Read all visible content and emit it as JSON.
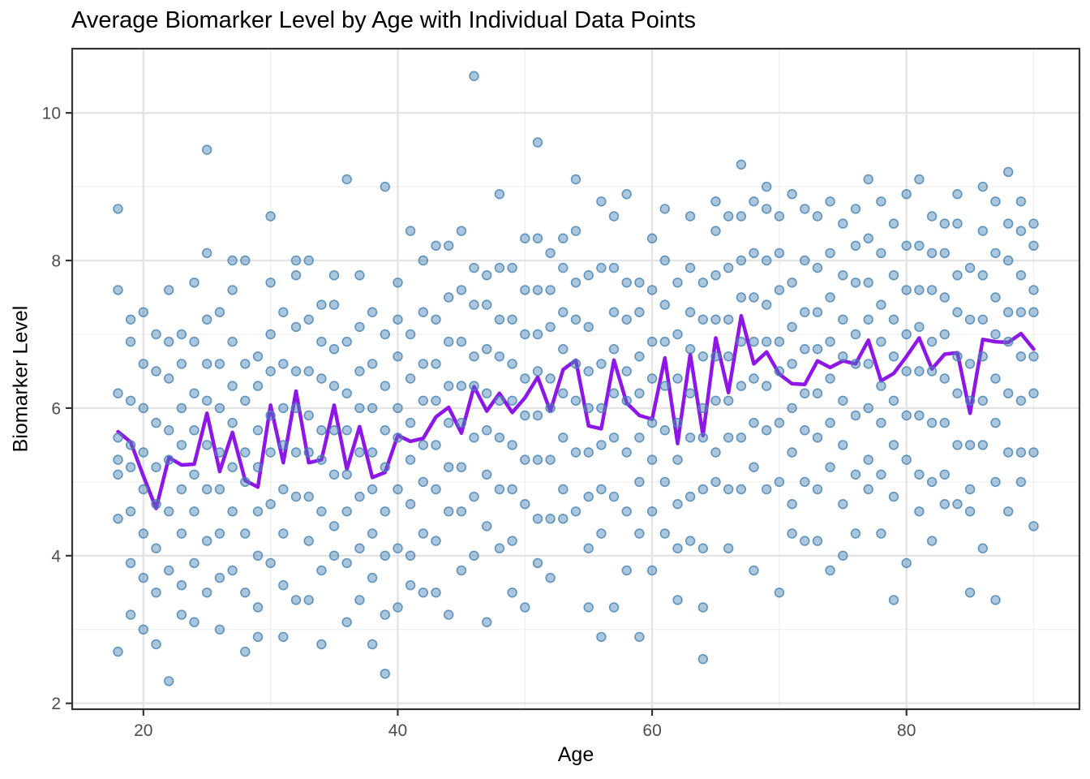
{
  "title": "Average Biomarker Level by Age with Individual Data Points",
  "chart_data": {
    "type": "scatter",
    "title": "Average Biomarker Level by Age with Individual Data Points",
    "xlabel": "Age",
    "ylabel": "Biomarker Level",
    "x_major_ticks": [
      20,
      40,
      60,
      80
    ],
    "x_minor_gridlines": [
      30,
      50,
      70,
      90
    ],
    "y_major_ticks": [
      2,
      4,
      6,
      8,
      10
    ],
    "y_minor_gridlines": [
      3,
      5,
      7,
      9
    ],
    "xlim": [
      14.4,
      93.6
    ],
    "ylim": [
      1.92,
      10.87
    ],
    "grid": "major and minor, light gray on white",
    "legend_position": "none",
    "styles": {
      "point_color": "#4682B4",
      "point_alpha": 0.5,
      "point_radius": 5.4,
      "line_color": "#8F16E9",
      "line_width": 4.5,
      "grid_major_color": "#E4E4E4",
      "grid_minor_color": "#F0F0F0",
      "panel_border_color": "#333333",
      "tick_color": "#333333",
      "tick_label_color": "#4D4D4D",
      "title_color": "#000000",
      "background": "#FFFFFF"
    },
    "mean_line": {
      "label": "Average biomarker level by age",
      "ages": [
        18,
        19,
        20,
        21,
        22,
        23,
        24,
        25,
        26,
        27,
        28,
        29,
        30,
        31,
        32,
        33,
        34,
        35,
        36,
        37,
        38,
        39,
        40,
        41,
        42,
        43,
        44,
        45,
        46,
        47,
        48,
        49,
        50,
        51,
        52,
        53,
        54,
        55,
        56,
        57,
        58,
        59,
        60,
        61,
        62,
        63,
        64,
        65,
        66,
        67,
        68,
        69,
        70,
        71,
        72,
        73,
        74,
        75,
        76,
        77,
        78,
        79,
        80,
        81,
        82,
        83,
        84,
        85,
        86,
        87,
        88,
        89,
        90
      ],
      "values": [
        5.68,
        5.54,
        5.08,
        4.64,
        5.33,
        5.23,
        5.24,
        5.93,
        5.14,
        5.67,
        5.02,
        4.93,
        6.04,
        5.26,
        6.23,
        5.26,
        5.3,
        6.04,
        5.17,
        5.75,
        5.06,
        5.13,
        5.63,
        5.55,
        5.59,
        5.88,
        6.01,
        5.66,
        6.29,
        5.96,
        6.2,
        5.94,
        6.14,
        6.42,
        5.96,
        6.52,
        6.65,
        5.76,
        5.72,
        6.65,
        6.07,
        5.9,
        5.85,
        6.68,
        5.52,
        6.73,
        5.63,
        6.95,
        6.21,
        7.25,
        6.6,
        6.76,
        6.46,
        6.33,
        6.32,
        6.64,
        6.55,
        6.64,
        6.6,
        6.92,
        6.37,
        6.47,
        6.7,
        6.95,
        6.53,
        6.73,
        6.75,
        5.93,
        6.93,
        6.9,
        6.89,
        7.01,
        6.8
      ]
    },
    "points_by_age": {
      "18": [
        2.7,
        4.5,
        5.1,
        5.3,
        5.6,
        6.2,
        7.6,
        8.7
      ],
      "19": [
        3.2,
        3.9,
        4.6,
        5.2,
        5.5,
        6.1,
        6.9,
        7.2
      ],
      "20": [
        3.0,
        3.7,
        4.3,
        4.9,
        5.4,
        6.0,
        6.6,
        7.3
      ],
      "21": [
        2.8,
        3.5,
        4.1,
        4.7,
        5.2,
        5.8,
        6.5,
        7.0
      ],
      "22": [
        2.3,
        3.8,
        4.6,
        5.3,
        5.7,
        6.4,
        6.9,
        7.6
      ],
      "23": [
        3.2,
        3.6,
        4.3,
        4.9,
        5.5,
        6.0,
        6.6,
        7.0
      ],
      "24": [
        3.1,
        3.9,
        4.6,
        5.1,
        5.7,
        6.2,
        6.9,
        7.7
      ],
      "25": [
        3.5,
        4.2,
        4.9,
        5.5,
        6.1,
        6.6,
        7.2,
        8.1,
        9.5
      ],
      "26": [
        3.0,
        3.7,
        4.3,
        4.9,
        5.4,
        6.0,
        6.6,
        7.3
      ],
      "27": [
        3.8,
        4.6,
        5.2,
        5.8,
        6.3,
        6.9,
        7.6,
        8.0
      ],
      "28": [
        2.7,
        3.5,
        4.3,
        5.0,
        5.4,
        6.1,
        6.6,
        8.0
      ],
      "29": [
        2.9,
        3.3,
        4.0,
        4.6,
        5.2,
        5.7,
        6.3,
        6.7
      ],
      "30": [
        3.9,
        4.7,
        5.4,
        5.9,
        6.5,
        7.0,
        7.7,
        8.6
      ],
      "31": [
        2.9,
        3.6,
        4.3,
        4.9,
        5.5,
        6.0,
        6.6,
        7.3
      ],
      "32": [
        3.4,
        4.8,
        5.4,
        6.0,
        6.5,
        7.1,
        7.8,
        8.0
      ],
      "33": [
        3.4,
        4.2,
        4.8,
        5.4,
        5.9,
        6.5,
        7.2,
        8.0
      ],
      "34": [
        2.8,
        3.8,
        4.6,
        5.3,
        5.7,
        6.4,
        6.9,
        7.4
      ],
      "35": [
        4.0,
        4.4,
        5.1,
        5.7,
        6.3,
        6.8,
        7.4,
        7.8
      ],
      "36": [
        3.1,
        3.9,
        4.6,
        5.1,
        5.7,
        6.2,
        6.9,
        9.1
      ],
      "37": [
        3.4,
        4.1,
        4.8,
        5.4,
        6.0,
        6.5,
        7.1,
        7.8
      ],
      "38": [
        2.8,
        3.7,
        4.3,
        4.9,
        5.4,
        6.0,
        6.6,
        7.3
      ],
      "39": [
        2.4,
        3.2,
        4.0,
        4.6,
        5.2,
        5.7,
        6.3,
        7.0,
        9.0
      ],
      "40": [
        3.3,
        4.1,
        4.9,
        5.6,
        6.0,
        6.7,
        7.2,
        7.7
      ],
      "41": [
        3.6,
        4.0,
        4.7,
        5.3,
        5.8,
        6.4,
        7.0,
        8.4
      ],
      "42": [
        3.5,
        4.3,
        5.0,
        5.5,
        6.1,
        6.6,
        7.3,
        8.0
      ],
      "43": [
        3.5,
        4.2,
        4.9,
        5.5,
        6.1,
        6.6,
        7.2,
        8.2
      ],
      "44": [
        3.2,
        4.6,
        5.2,
        5.8,
        6.3,
        6.9,
        7.5,
        8.2
      ],
      "45": [
        3.8,
        4.6,
        5.2,
        5.8,
        6.3,
        6.9,
        7.6,
        8.4
      ],
      "46": [
        4.0,
        4.8,
        5.6,
        6.3,
        6.7,
        7.4,
        7.9,
        10.5
      ],
      "47": [
        3.1,
        4.4,
        5.1,
        5.7,
        6.2,
        6.8,
        7.4,
        7.8
      ],
      "48": [
        4.1,
        4.9,
        5.6,
        6.1,
        6.7,
        7.2,
        7.9,
        8.9
      ],
      "49": [
        3.5,
        4.2,
        4.9,
        5.5,
        6.1,
        6.6,
        7.2,
        7.9
      ],
      "50": [
        3.3,
        4.7,
        5.3,
        5.9,
        6.4,
        7.0,
        7.6,
        8.3
      ],
      "51": [
        3.9,
        4.5,
        5.3,
        5.9,
        6.5,
        7.0,
        7.6,
        8.3,
        9.6
      ],
      "52": [
        3.7,
        4.5,
        5.3,
        6.0,
        6.4,
        7.1,
        7.6,
        8.1
      ],
      "53": [
        4.5,
        4.9,
        5.6,
        6.2,
        6.8,
        7.3,
        7.9,
        8.3
      ],
      "54": [
        4.6,
        5.4,
        6.1,
        6.6,
        7.2,
        7.7,
        8.4,
        9.1
      ],
      "55": [
        3.3,
        4.1,
        4.8,
        5.4,
        6.0,
        6.5,
        7.1,
        7.8
      ],
      "56": [
        2.9,
        4.3,
        4.9,
        5.5,
        6.0,
        6.6,
        7.9,
        8.8
      ],
      "57": [
        3.3,
        4.8,
        5.6,
        6.2,
        6.8,
        7.3,
        7.9,
        8.6
      ],
      "58": [
        3.8,
        4.6,
        5.4,
        6.1,
        6.5,
        7.2,
        7.7,
        8.9
      ],
      "59": [
        2.9,
        4.3,
        5.0,
        5.6,
        6.2,
        6.7,
        7.3,
        7.7
      ],
      "60": [
        3.8,
        4.6,
        5.3,
        5.8,
        6.4,
        6.9,
        7.6,
        8.3
      ],
      "61": [
        4.3,
        5.0,
        5.7,
        6.3,
        6.9,
        7.4,
        8.0,
        8.7
      ],
      "62": [
        3.4,
        4.1,
        4.7,
        5.3,
        5.8,
        6.4,
        7.0,
        7.7
      ],
      "63": [
        4.2,
        4.8,
        5.6,
        6.2,
        6.8,
        7.3,
        7.9,
        8.6
      ],
      "64": [
        2.6,
        3.3,
        4.1,
        4.9,
        5.6,
        6.0,
        6.7,
        7.2,
        7.7
      ],
      "65": [
        5.0,
        5.4,
        6.1,
        6.7,
        7.2,
        7.8,
        8.4,
        8.8
      ],
      "66": [
        4.1,
        4.9,
        5.6,
        6.1,
        6.7,
        7.2,
        7.9,
        8.6
      ],
      "67": [
        4.9,
        5.6,
        6.3,
        6.9,
        7.5,
        8.0,
        8.6,
        9.3
      ],
      "68": [
        3.8,
        5.2,
        5.8,
        6.4,
        6.9,
        7.5,
        8.1,
        8.8
      ],
      "69": [
        4.9,
        5.7,
        6.3,
        6.9,
        7.4,
        8.0,
        8.7,
        9.0
      ],
      "70": [
        3.5,
        5.0,
        5.8,
        6.5,
        6.9,
        7.6,
        8.1,
        8.6
      ],
      "71": [
        4.3,
        4.7,
        5.4,
        6.0,
        6.6,
        7.1,
        7.7,
        8.9
      ],
      "72": [
        4.2,
        5.0,
        5.7,
        6.2,
        6.8,
        7.3,
        8.0,
        8.7
      ],
      "73": [
        4.2,
        4.9,
        5.6,
        6.2,
        6.8,
        7.3,
        7.9,
        8.6
      ],
      "74": [
        3.8,
        5.2,
        5.8,
        6.4,
        6.9,
        7.5,
        8.1,
        8.8
      ],
      "75": [
        4.0,
        4.7,
        5.5,
        6.1,
        6.7,
        7.2,
        7.8,
        8.5
      ],
      "76": [
        4.3,
        5.1,
        5.9,
        6.6,
        7.0,
        7.7,
        8.2,
        8.7
      ],
      "77": [
        4.9,
        5.3,
        6.0,
        6.6,
        7.2,
        7.7,
        8.3,
        9.1
      ],
      "78": [
        4.3,
        5.1,
        5.8,
        6.3,
        6.9,
        7.4,
        8.1,
        8.8
      ],
      "79": [
        3.4,
        4.8,
        5.5,
        6.1,
        6.7,
        7.2,
        7.8,
        8.5
      ],
      "80": [
        3.9,
        5.3,
        5.9,
        6.5,
        7.0,
        7.6,
        8.2,
        8.9
      ],
      "81": [
        4.6,
        5.1,
        5.9,
        6.5,
        7.1,
        7.6,
        8.2,
        9.1
      ],
      "82": [
        4.2,
        5.0,
        5.8,
        6.5,
        6.9,
        7.6,
        8.1,
        8.6
      ],
      "83": [
        4.7,
        5.1,
        5.8,
        6.4,
        7.0,
        7.5,
        8.1,
        8.5
      ],
      "84": [
        4.7,
        5.5,
        6.2,
        6.7,
        7.3,
        7.8,
        8.5,
        8.9
      ],
      "85": [
        3.5,
        4.6,
        4.9,
        5.5,
        6.1,
        6.6,
        7.2,
        7.9
      ],
      "86": [
        4.1,
        5.5,
        6.1,
        6.7,
        7.2,
        7.8,
        8.4,
        9.0
      ],
      "87": [
        3.4,
        5.0,
        5.8,
        6.4,
        7.0,
        7.5,
        8.1,
        8.8
      ],
      "88": [
        4.6,
        5.4,
        6.2,
        6.9,
        7.3,
        8.0,
        8.5,
        9.2
      ],
      "89": [
        5.0,
        5.4,
        6.1,
        6.7,
        7.3,
        7.8,
        8.4,
        8.8
      ],
      "90": [
        4.4,
        5.4,
        6.2,
        6.7,
        7.3,
        7.6,
        8.2,
        8.5
      ]
    }
  }
}
